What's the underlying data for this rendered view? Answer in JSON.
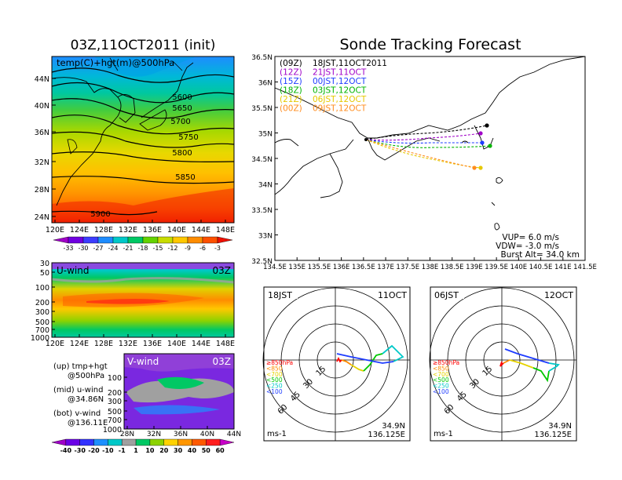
{
  "left_title": "03Z,11OCT2011 (init)",
  "right_title": "Sonde Tracking Forecast",
  "map500": {
    "label": "temp(C)+hgt(m)@500hPa",
    "lat_ticks": [
      "44N",
      "40N",
      "36N",
      "32N",
      "28N",
      "24N"
    ],
    "lon_ticks": [
      "120E",
      "124E",
      "128E",
      "132E",
      "136E",
      "140E",
      "144E",
      "148E"
    ],
    "contour_labels": [
      "5600",
      "5650",
      "5700",
      "5750",
      "5800",
      "5850",
      "5900"
    ],
    "colorbar_labels": [
      "-33",
      "-30",
      "-27",
      "-24",
      "-21",
      "-18",
      "-15",
      "-12",
      "-9",
      "-6",
      "-3"
    ],
    "colorbar_colors": [
      "#a000c8",
      "#7000e0",
      "#3c3cff",
      "#1e8cff",
      "#00c8c8",
      "#00c864",
      "#64d200",
      "#c8dc00",
      "#ffc800",
      "#ff8c00",
      "#ff5000",
      "#f01000"
    ]
  },
  "uwind": {
    "label": "U-wind",
    "time": "03Z",
    "p_ticks": [
      "30",
      "50",
      "100",
      "200",
      "300",
      "500",
      "700",
      "1000"
    ],
    "lon_ticks": [
      "120E",
      "124E",
      "128E",
      "132E",
      "136E",
      "140E",
      "144E",
      "148E"
    ]
  },
  "vwind": {
    "label": "V-wind",
    "time": "03Z",
    "p_ticks": [
      "100",
      "200",
      "300",
      "500",
      "700",
      "1000"
    ],
    "lat_ticks": [
      "28N",
      "32N",
      "36N",
      "40N",
      "44N"
    ]
  },
  "wind_colorbar": {
    "labels": [
      "-40",
      "-30",
      "-20",
      "-10",
      "-1",
      "1",
      "10",
      "20",
      "30",
      "40",
      "50",
      "60"
    ],
    "colors": [
      "#a000c8",
      "#6a00e6",
      "#3232ff",
      "#1e90ff",
      "#00c8c8",
      "#a0a0a0",
      "#00c864",
      "#8cd200",
      "#ffd200",
      "#ff9600",
      "#ff5a00",
      "#ff1e1e",
      "#c800c8"
    ]
  },
  "legend_text": {
    "up_1": "(up) tmp+hgt",
    "up_2": "@500hPa",
    "mid_1": "(mid) u-wind",
    "mid_2": "@34.86N",
    "bot_1": "(bot) v-wind",
    "bot_2": "@136.11E"
  },
  "track_map": {
    "lat_ticks": [
      "36.5N",
      "36N",
      "35.5N",
      "35N",
      "34.5N",
      "34N",
      "33.5N",
      "33N",
      "32.5N"
    ],
    "lon_ticks": [
      "134.5E",
      "135E",
      "135.5E",
      "136E",
      "136.5E",
      "137E",
      "137.5E",
      "138E",
      "138.5E",
      "139E",
      "139.5E",
      "140E",
      "140.5E",
      "141E",
      "141.5E"
    ],
    "runs": [
      {
        "tag": "(09Z)",
        "time": "18JST,11OCT2011",
        "color": "#000000"
      },
      {
        "tag": "(12Z)",
        "time": "21JST,11OCT",
        "color": "#a000c8"
      },
      {
        "tag": "(15Z)",
        "time": "00JST,12OCT",
        "color": "#1e3cff"
      },
      {
        "tag": "(18Z)",
        "time": "03JST,12OCT",
        "color": "#00b400"
      },
      {
        "tag": "(21Z)",
        "time": "06JST,12OCT",
        "color": "#e6c800"
      },
      {
        "tag": "(00Z)",
        "time": "09JST,12OCT",
        "color": "#ff8c1e"
      }
    ],
    "vup": "VUP= 6.0 m/s",
    "vdw": "VDW= -3.0 m/s",
    "burst": "Burst Alt= 34.0 km"
  },
  "hodo_left": {
    "time_label": "18JST",
    "date_label": "11OCT",
    "ring_labels": [
      "15",
      "30",
      "45",
      "60"
    ],
    "units": "ms-1",
    "lat": "34.9N",
    "lon": "136.125E",
    "levels": [
      {
        "label": "≥850hPa",
        "color": "#ff0000"
      },
      {
        "label": "<850",
        "color": "#ff8c00"
      },
      {
        "label": "<700",
        "color": "#e6d200"
      },
      {
        "label": "<500",
        "color": "#00c800"
      },
      {
        "label": "<250",
        "color": "#00c8c8"
      },
      {
        "label": "<100",
        "color": "#1e3cff"
      }
    ]
  },
  "hodo_right": {
    "time_label": "06JST",
    "date_label": "12OCT",
    "ring_labels": [
      "15",
      "30",
      "45",
      "60"
    ],
    "units": "ms-1",
    "lat": "34.9N",
    "lon": "136.125E",
    "levels": [
      {
        "label": "≥850hPa",
        "color": "#ff0000"
      },
      {
        "label": "<850",
        "color": "#ff8c00"
      },
      {
        "label": "<700",
        "color": "#e6d200"
      },
      {
        "label": "<500",
        "color": "#00c800"
      },
      {
        "label": "<250",
        "color": "#00c8c8"
      },
      {
        "label": "<100",
        "color": "#1e3cff"
      }
    ]
  }
}
